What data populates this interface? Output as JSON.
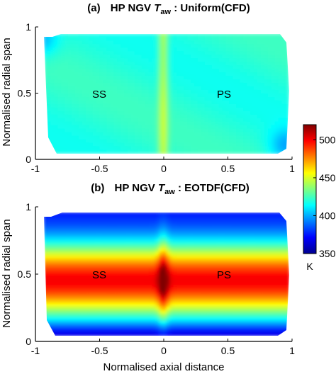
{
  "chart_data": [
    {
      "type": "heatmap",
      "panel_label": "(a)",
      "title": {
        "prefix": "HP NGV ",
        "symbol": "T",
        "subscript": "aw",
        "suffix": " : Uniform(CFD)"
      },
      "ylabel": "Normalised radial span",
      "xlabel": "",
      "xlim": [
        -1,
        1
      ],
      "ylim": [
        0,
        1
      ],
      "xticks": [
        "-1",
        "-0.5",
        "0",
        "0.5",
        "1"
      ],
      "yticks": [
        "0",
        "0.5",
        "1"
      ],
      "annotations": [
        {
          "text": "SS",
          "x": -0.52,
          "y": 0.5
        },
        {
          "text": "PS",
          "x": 0.52,
          "y": 0.5
        }
      ],
      "field": "uniform",
      "approx_values_K": {
        "surface": 420,
        "leading_edge_strip": 445,
        "corners": 400
      }
    },
    {
      "type": "heatmap",
      "panel_label": "(b)",
      "title": {
        "prefix": "HP NGV ",
        "symbol": "T",
        "subscript": "aw",
        "suffix": " : EOTDF(CFD)"
      },
      "ylabel": "Normalised radial span",
      "xlabel": "Normalised axial distance",
      "xlim": [
        -1,
        1
      ],
      "ylim": [
        0,
        1
      ],
      "xticks": [
        "-1",
        "-0.5",
        "0",
        "0.5",
        "1"
      ],
      "yticks": [
        "0",
        "0.5",
        "1"
      ],
      "annotations": [
        {
          "text": "SS",
          "x": -0.52,
          "y": 0.5
        },
        {
          "text": "PS",
          "x": 0.52,
          "y": 0.5
        }
      ],
      "field": "eotdf",
      "approx_values_K": {
        "midspan_peak": 500,
        "leading_edge_midspan": 520,
        "hub_tip": 370
      }
    }
  ],
  "colorbar": {
    "min": 350,
    "max": 520,
    "ticks": [
      "350",
      "400",
      "450",
      "500"
    ],
    "unit": "K",
    "colormap": "jet"
  },
  "colors": {
    "axis": "#000000",
    "background": "#ffffff"
  }
}
